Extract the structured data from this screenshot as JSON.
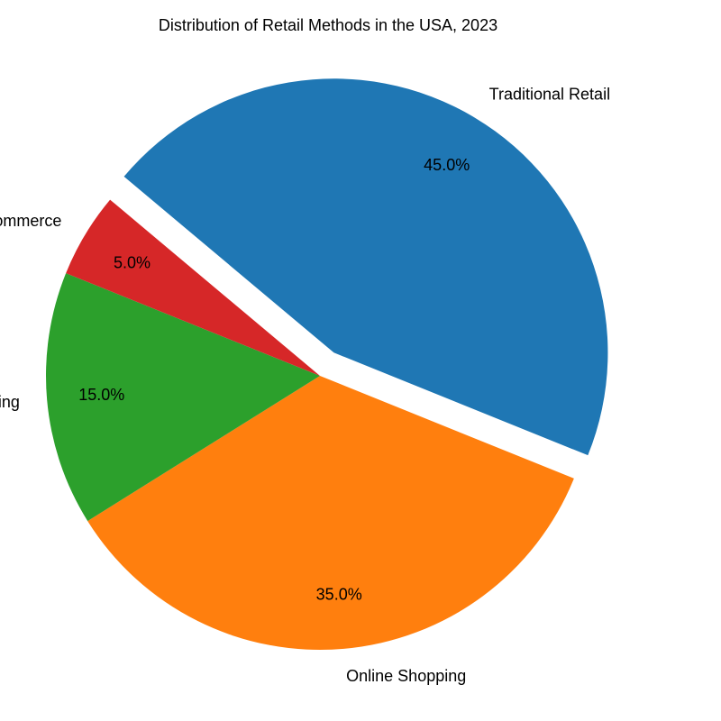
{
  "chart_data": {
    "type": "pie",
    "title": "Distribution of Retail Methods in the USA, 2023",
    "categories": [
      "Traditional Retail",
      "Online Shopping",
      "Mobile Shopping",
      "Social Commerce"
    ],
    "values": [
      45,
      35,
      15,
      5
    ],
    "percent_labels": [
      "45.0%",
      "35.0%",
      "15.0%",
      "5.0%"
    ],
    "colors": [
      "#1f77b4",
      "#ff7f0e",
      "#2ca02c",
      "#d62728"
    ],
    "exploded": [
      "Traditional Retail"
    ],
    "start_angle_deg": 140,
    "direction": "clockwise",
    "legend": "none"
  }
}
